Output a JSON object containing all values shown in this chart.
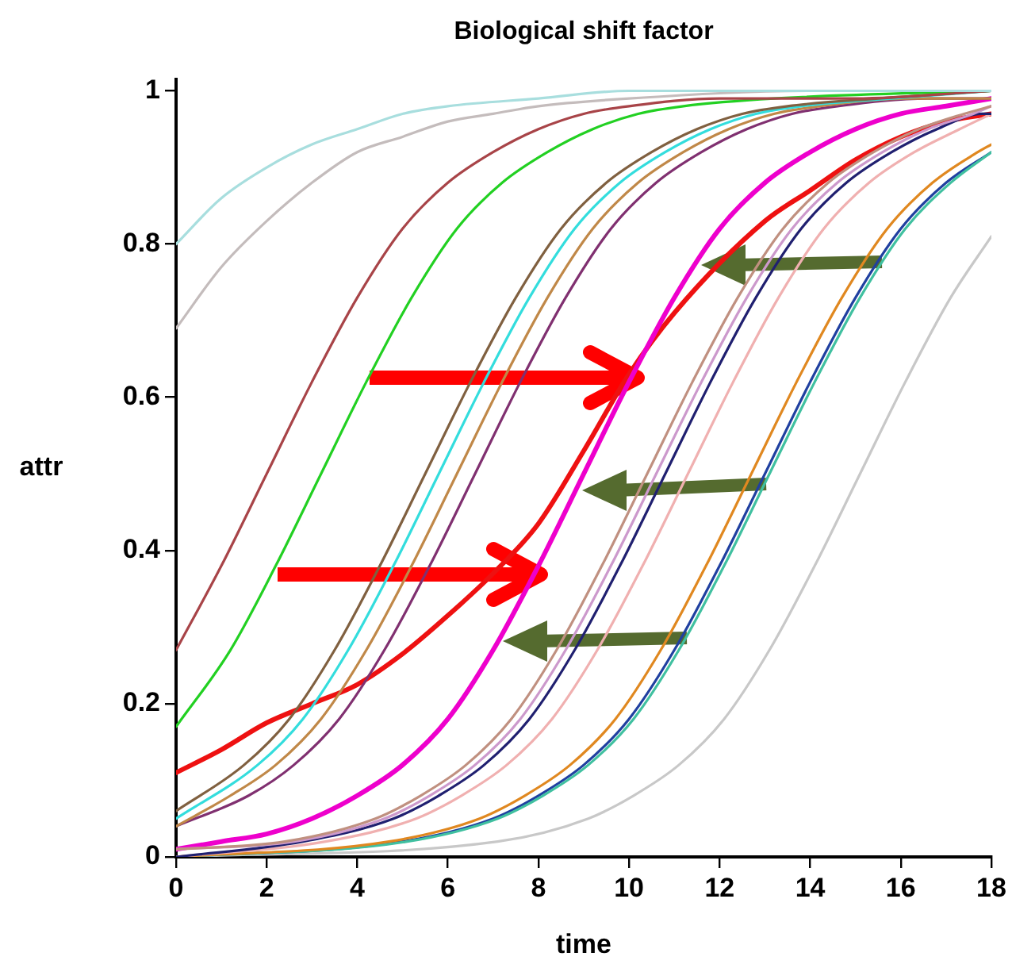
{
  "chart_data": {
    "type": "line",
    "title": "Biological shift factor",
    "xlabel": "time",
    "ylabel": "attr",
    "xlim": [
      0,
      18
    ],
    "ylim": [
      0,
      1.015
    ],
    "xticks": [
      0,
      2,
      4,
      6,
      8,
      10,
      12,
      14,
      16,
      18
    ],
    "yticks": [
      0,
      0.2,
      0.4,
      0.6,
      0.8,
      1
    ],
    "grid": false,
    "legend": false,
    "marker": "none",
    "line_style": "solid",
    "series": [
      {
        "color": "#a8dede",
        "x": [
          0,
          1,
          2,
          3,
          4,
          5,
          6,
          8,
          10,
          14,
          18
        ],
        "values": [
          0.8,
          0.86,
          0.9,
          0.93,
          0.95,
          0.97,
          0.98,
          0.99,
          1,
          1,
          1
        ]
      },
      {
        "color": "#c4bcbc",
        "x": [
          0,
          1,
          2,
          3,
          4,
          5,
          6,
          7,
          8,
          10,
          14,
          18
        ],
        "values": [
          0.69,
          0.77,
          0.83,
          0.88,
          0.92,
          0.94,
          0.96,
          0.97,
          0.98,
          0.99,
          1,
          1
        ]
      },
      {
        "color": "#a84448",
        "x": [
          0,
          1,
          2,
          3,
          4,
          5,
          6,
          7,
          8,
          9,
          10,
          12,
          15,
          18
        ],
        "values": [
          0.27,
          0.38,
          0.5,
          0.62,
          0.73,
          0.82,
          0.88,
          0.92,
          0.95,
          0.97,
          0.98,
          0.99,
          0.99,
          1
        ]
      },
      {
        "color": "#22d022",
        "x": [
          0,
          1.2,
          2.2,
          3.2,
          4.2,
          5.2,
          6.2,
          7.2,
          8.2,
          9.2,
          10.2,
          11.2,
          13.2,
          18
        ],
        "values": [
          0.17,
          0.27,
          0.38,
          0.5,
          0.62,
          0.73,
          0.82,
          0.88,
          0.92,
          0.95,
          0.97,
          0.98,
          0.99,
          1
        ]
      },
      {
        "color": "#806040",
        "x": [
          0,
          1.5,
          2.5,
          3.5,
          4.5,
          5.5,
          6.5,
          7.5,
          8.5,
          9.5,
          10.5,
          11.5,
          12.5,
          13.5,
          15.5,
          18
        ],
        "values": [
          0.06,
          0.12,
          0.18,
          0.27,
          0.38,
          0.5,
          0.62,
          0.73,
          0.82,
          0.88,
          0.92,
          0.95,
          0.97,
          0.98,
          0.99,
          1
        ]
      },
      {
        "color": "#33dddd",
        "x": [
          0,
          1.8,
          2.8,
          3.8,
          4.8,
          5.8,
          6.8,
          7.8,
          8.8,
          9.8,
          10.8,
          11.8,
          12.8,
          13.8,
          15.8,
          18
        ],
        "values": [
          0.05,
          0.12,
          0.18,
          0.27,
          0.38,
          0.5,
          0.62,
          0.73,
          0.82,
          0.88,
          0.92,
          0.95,
          0.97,
          0.98,
          0.99,
          1
        ]
      },
      {
        "color": "#c08848",
        "x": [
          0,
          1.2,
          2.2,
          3.2,
          4.2,
          5.2,
          6.2,
          7.2,
          8.2,
          9.2,
          10.2,
          11.2,
          12.2,
          13.2,
          14.2,
          16.2,
          18
        ],
        "values": [
          0.04,
          0.08,
          0.12,
          0.18,
          0.27,
          0.38,
          0.5,
          0.62,
          0.73,
          0.82,
          0.88,
          0.92,
          0.95,
          0.97,
          0.98,
          0.99,
          0.99
        ]
      },
      {
        "color": "#803070",
        "x": [
          0,
          1.6,
          2.6,
          3.6,
          4.6,
          5.6,
          6.6,
          7.6,
          8.6,
          9.6,
          10.6,
          11.6,
          12.6,
          13.6,
          14.6,
          16.6,
          18
        ],
        "values": [
          0.04,
          0.08,
          0.12,
          0.18,
          0.27,
          0.38,
          0.5,
          0.62,
          0.73,
          0.82,
          0.88,
          0.92,
          0.95,
          0.97,
          0.98,
          0.99,
          0.99
        ]
      },
      {
        "color": "#c09080",
        "x": [
          0,
          2.4,
          4.4,
          5.4,
          6.4,
          7.4,
          8.4,
          9.4,
          10.4,
          11.4,
          12.4,
          13.4,
          14.4,
          15.4,
          16.4,
          17.4,
          18
        ],
        "values": [
          0.01,
          0.02,
          0.05,
          0.08,
          0.12,
          0.18,
          0.27,
          0.38,
          0.5,
          0.62,
          0.73,
          0.82,
          0.88,
          0.92,
          0.95,
          0.97,
          0.98
        ]
      },
      {
        "color": "#cc99cc",
        "x": [
          0,
          2.6,
          4.6,
          5.6,
          6.6,
          7.6,
          8.6,
          9.6,
          10.6,
          11.6,
          12.6,
          13.6,
          14.6,
          15.6,
          16.6,
          17.6,
          18
        ],
        "values": [
          0.01,
          0.02,
          0.05,
          0.08,
          0.12,
          0.18,
          0.27,
          0.38,
          0.5,
          0.62,
          0.73,
          0.82,
          0.88,
          0.92,
          0.95,
          0.97,
          0.98
        ]
      },
      {
        "color": "#202070",
        "x": [
          0,
          2.8,
          4.8,
          5.8,
          6.8,
          7.8,
          8.8,
          9.8,
          10.8,
          11.8,
          12.8,
          13.8,
          14.8,
          15.8,
          16.8,
          17.8,
          18
        ],
        "values": [
          0,
          0.02,
          0.05,
          0.08,
          0.12,
          0.18,
          0.27,
          0.38,
          0.5,
          0.62,
          0.73,
          0.82,
          0.88,
          0.92,
          0.95,
          0.97,
          0.97
        ]
      },
      {
        "color": "#f0b0b0",
        "x": [
          0,
          3.3,
          5.3,
          6.3,
          7.3,
          8.3,
          9.3,
          10.3,
          11.3,
          12.3,
          13.3,
          14.3,
          15.3,
          16.3,
          17.3,
          18
        ],
        "values": [
          0,
          0.02,
          0.05,
          0.08,
          0.12,
          0.18,
          0.27,
          0.38,
          0.5,
          0.62,
          0.73,
          0.82,
          0.88,
          0.92,
          0.95,
          0.97
        ]
      },
      {
        "color": "#e08820",
        "x": [
          0,
          4.7,
          6.7,
          7.7,
          8.7,
          9.7,
          10.7,
          11.7,
          12.7,
          13.7,
          14.7,
          15.7,
          16.7,
          17.7,
          18
        ],
        "values": [
          0,
          0.02,
          0.05,
          0.08,
          0.12,
          0.18,
          0.27,
          0.38,
          0.5,
          0.62,
          0.73,
          0.82,
          0.88,
          0.92,
          0.93
        ]
      },
      {
        "color": "#40c0a0",
        "x": [
          0,
          5.1,
          7.1,
          8.1,
          9.1,
          10.1,
          11.1,
          12.1,
          13.1,
          14.1,
          15.1,
          16.1,
          17.1,
          18
        ],
        "values": [
          0,
          0.02,
          0.05,
          0.08,
          0.12,
          0.18,
          0.27,
          0.38,
          0.5,
          0.62,
          0.73,
          0.82,
          0.88,
          0.92
        ]
      },
      {
        "color": "#2040a0",
        "x": [
          0,
          5,
          7,
          8,
          9,
          10,
          11,
          12,
          13,
          14,
          15,
          16,
          17,
          18
        ],
        "values": [
          0,
          0.02,
          0.05,
          0.08,
          0.12,
          0.18,
          0.27,
          0.38,
          0.5,
          0.62,
          0.73,
          0.82,
          0.88,
          0.92
        ]
      },
      {
        "color": "#c8c8c8",
        "x": [
          0,
          7.1,
          9.1,
          10.1,
          11.1,
          12.1,
          13.1,
          14.1,
          15.1,
          16.1,
          17.1,
          18
        ],
        "values": [
          0,
          0.02,
          0.05,
          0.08,
          0.12,
          0.18,
          0.27,
          0.38,
          0.5,
          0.62,
          0.73,
          0.81
        ]
      },
      {
        "color": "#ee00cc",
        "x": [
          0,
          1,
          2,
          3,
          4,
          5,
          6,
          7,
          8,
          9,
          10,
          11,
          12,
          13,
          14,
          15,
          16,
          17,
          18
        ],
        "values": [
          0.01,
          0.02,
          0.03,
          0.05,
          0.08,
          0.12,
          0.18,
          0.27,
          0.38,
          0.5,
          0.62,
          0.73,
          0.82,
          0.88,
          0.92,
          0.95,
          0.97,
          0.98,
          0.99
        ]
      },
      {
        "color": "#ee1111",
        "x": [
          0,
          1,
          2,
          3,
          4,
          5,
          6,
          7,
          8,
          9,
          10,
          11,
          13,
          14,
          15,
          16,
          17,
          18
        ],
        "values": [
          0.11,
          0.14,
          0.175,
          0.2,
          0.225,
          0.265,
          0.315,
          0.37,
          0.435,
          0.53,
          0.63,
          0.71,
          0.83,
          0.87,
          0.91,
          0.94,
          0.96,
          0.97
        ]
      }
    ]
  }
}
